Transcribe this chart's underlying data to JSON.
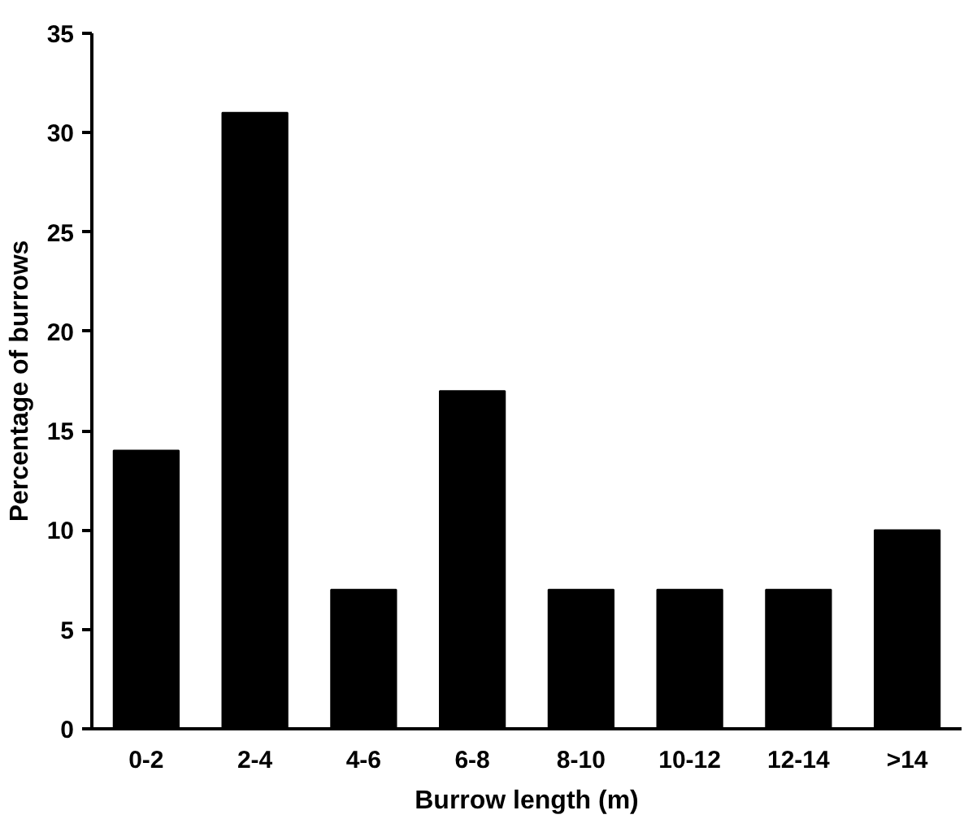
{
  "chart_data": {
    "type": "bar",
    "xlabel": "Burrow length (m)",
    "ylabel": "Percentage of burrows",
    "categories": [
      "0-2",
      "2-4",
      "4-6",
      "6-8",
      "8-10",
      "10-12",
      "12-14",
      ">14"
    ],
    "values": [
      14,
      31,
      7,
      17,
      7,
      7,
      7,
      10
    ],
    "color": "#000000",
    "ylim": [
      0,
      35
    ],
    "yticks": [
      0,
      5,
      10,
      15,
      20,
      25,
      30,
      35
    ],
    "grid": false
  }
}
